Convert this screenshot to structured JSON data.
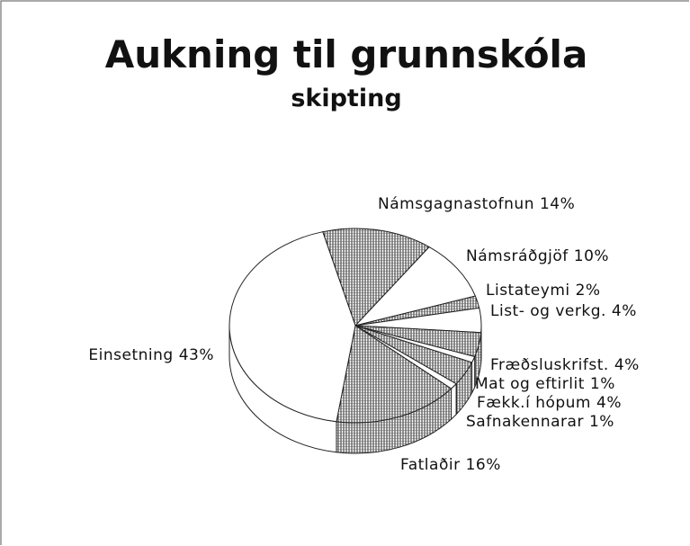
{
  "chart_data": {
    "type": "pie",
    "title": "Aukning til grunnskóla",
    "subtitle": "skipting",
    "categories": [
      "Námsgagnastofnun",
      "Námsráðgjöf",
      "Listateymi",
      "List- og verkg.",
      "Fræðsluskrifst.",
      "Mat og eftirlit",
      "Fækk.í hópum",
      "Safnakennarar",
      "Fatlaðir",
      "Einsetning"
    ],
    "values": [
      14,
      10,
      2,
      4,
      4,
      1,
      4,
      1,
      16,
      43
    ],
    "value_labels": [
      "14%",
      "10%",
      "2%",
      "4%",
      "4%",
      "1%",
      "4%",
      "1%",
      "16%",
      "43%"
    ],
    "hatched": [
      true,
      false,
      true,
      false,
      true,
      false,
      true,
      false,
      true,
      false
    ]
  }
}
